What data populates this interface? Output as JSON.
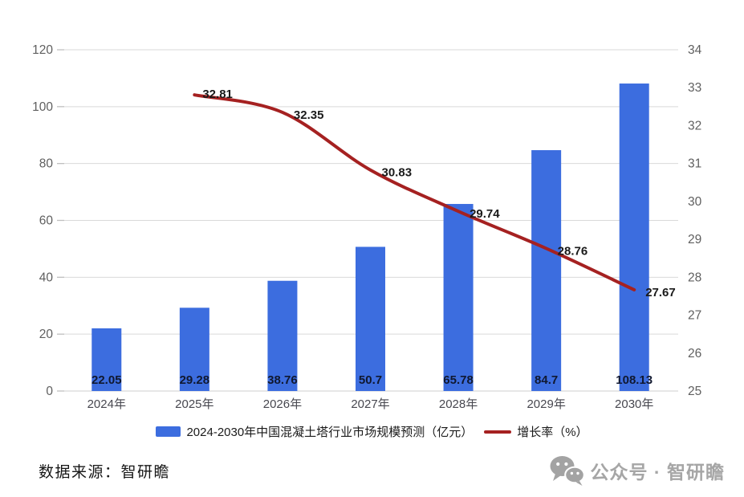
{
  "chart_data": {
    "type": "combo",
    "categories": [
      "2024年",
      "2025年",
      "2026年",
      "2027年",
      "2028年",
      "2029年",
      "2030年"
    ],
    "series": [
      {
        "name": "2024-2030年中国混凝土塔行业市场规模预测（亿元）",
        "type": "bar",
        "axis": "left",
        "color": "#3C6DDF",
        "values": [
          22.05,
          29.28,
          38.76,
          50.7,
          65.78,
          84.7,
          108.13
        ]
      },
      {
        "name": "增长率（%）",
        "type": "line",
        "axis": "right",
        "color": "#A52121",
        "values": [
          null,
          32.81,
          32.35,
          30.83,
          29.74,
          28.76,
          27.67
        ]
      }
    ],
    "left_axis": {
      "min": 0,
      "max": 120,
      "step": 20
    },
    "right_axis": {
      "min": 25,
      "max": 34,
      "step": 1
    },
    "grid": true,
    "legend_position": "bottom",
    "colors": {
      "grid": "#d9d9d9",
      "axis_line": "#cfcfcf",
      "tick": "#bfbfbf",
      "tick_label": "#5f5f5f",
      "x_label": "#47474f",
      "bar_value_label": "#101830",
      "line_value_label": "#1a1a1a"
    }
  },
  "footer": {
    "source": "数据来源：智研瞻",
    "wechat_label": "公众号 · 智研瞻"
  }
}
